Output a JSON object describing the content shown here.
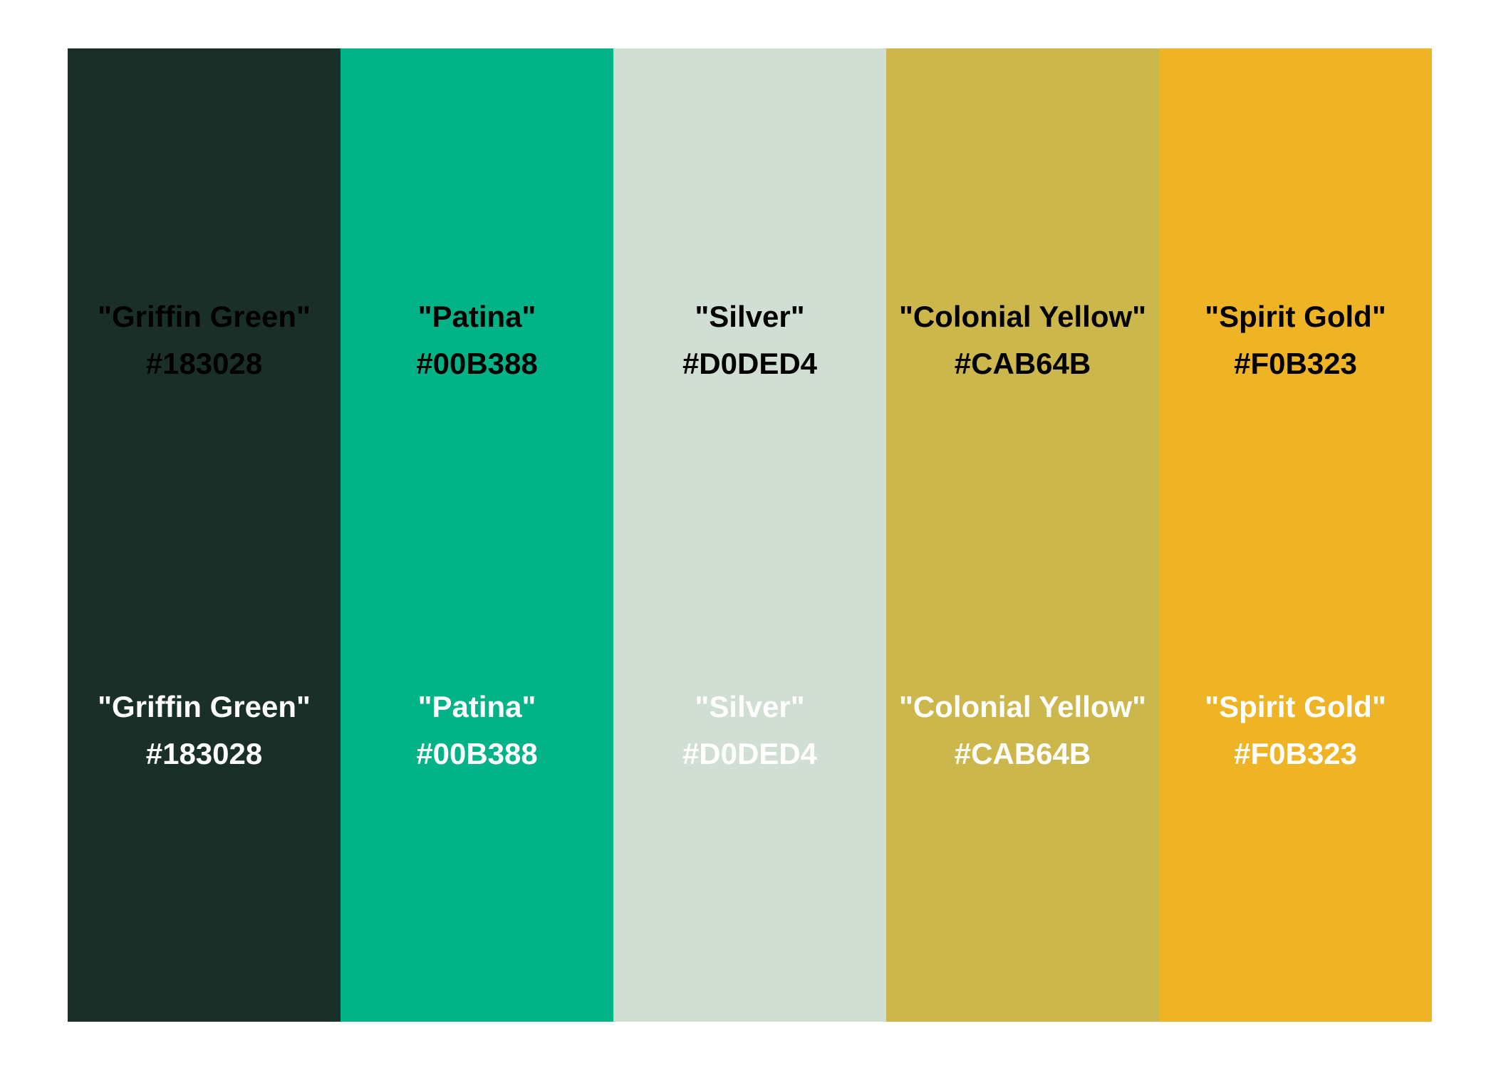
{
  "palette": {
    "swatches": [
      {
        "name": "\"Griffin Green\"",
        "hex": "#183028",
        "color": "#1B2F29"
      },
      {
        "name": "\"Patina\"",
        "hex": "#00B388",
        "color": "#02B388"
      },
      {
        "name": "\"Silver\"",
        "hex": "#D0DED4",
        "color": "#D1DED4"
      },
      {
        "name": "\"Colonial Yellow\"",
        "hex": "#CAB64B",
        "color": "#CBB74B"
      },
      {
        "name": "\"Spirit Gold\"",
        "hex": "#F0B323",
        "color": "#EFB426"
      }
    ]
  }
}
